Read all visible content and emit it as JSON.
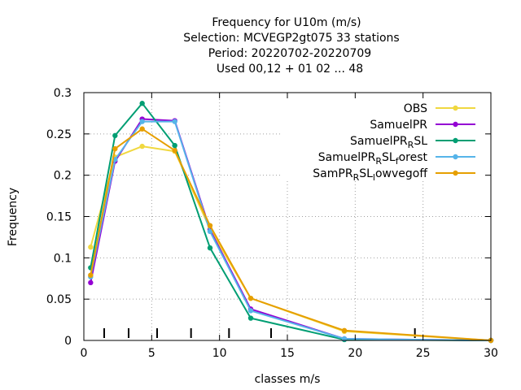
{
  "chart_data": {
    "type": "line",
    "title_lines": [
      "Frequency  for U10m (m/s)",
      "Selection: MCVEGP2gt075      33 stations",
      "Period: 20220702-20220709",
      "Used  00,12  + 01 02 ... 48"
    ],
    "xlabel": "classes m/s",
    "ylabel": "Frequency",
    "xlim": [
      0,
      30
    ],
    "ylim": [
      0,
      0.3
    ],
    "x_ticks": [
      "0",
      "5",
      "10",
      "15",
      "20",
      "25",
      "30"
    ],
    "y_ticks": [
      "0",
      "0.05",
      "0.1",
      "0.15",
      "0.2",
      "0.25",
      "0.3"
    ],
    "grid": "dotted",
    "legend_position": "top-right",
    "class_boundaries": [
      1.5,
      3.3,
      5.4,
      7.9,
      10.7,
      13.8,
      24.4
    ],
    "series": [
      {
        "name": "OBS",
        "color": "#f0d840",
        "x": [
          0.5,
          2.3,
          4.3,
          6.7,
          9.3,
          12.3,
          19.2,
          30
        ],
        "y": [
          0.113,
          0.222,
          0.235,
          0.229,
          0.135,
          0.051,
          0.011,
          0.0
        ]
      },
      {
        "name": "SamuelPR",
        "color": "#9400d3",
        "x": [
          0.5,
          2.3,
          4.3,
          6.7,
          9.3,
          12.3,
          19.2,
          30
        ],
        "y": [
          0.07,
          0.217,
          0.268,
          0.266,
          0.134,
          0.038,
          0.002,
          0.0
        ]
      },
      {
        "name": "SamuelPR_R SL",
        "color": "#009e73",
        "x": [
          0.5,
          2.3,
          4.3,
          6.7,
          9.3,
          12.3,
          19.2,
          30
        ],
        "y": [
          0.088,
          0.248,
          0.287,
          0.236,
          0.112,
          0.027,
          0.001,
          0.0
        ]
      },
      {
        "name": "SamuelPR_R SL_f orest",
        "color": "#56b4e9",
        "x": [
          0.5,
          2.3,
          4.3,
          6.7,
          9.3,
          12.3,
          19.2,
          30
        ],
        "y": [
          0.077,
          0.219,
          0.265,
          0.265,
          0.132,
          0.036,
          0.002,
          0.0
        ]
      },
      {
        "name": "SamPR_R SL_l owvegoff",
        "color": "#e69f00",
        "x": [
          0.5,
          2.3,
          4.3,
          6.7,
          9.3,
          12.3,
          19.2,
          30
        ],
        "y": [
          0.079,
          0.232,
          0.256,
          0.23,
          0.139,
          0.051,
          0.012,
          0.0
        ]
      }
    ],
    "legend": [
      {
        "main": "OBS",
        "parts": []
      },
      {
        "main": "SamuelPR",
        "parts": []
      },
      {
        "main": "SamuelPR",
        "parts": [
          {
            "t": "R",
            "sub": true
          },
          {
            "t": "SL",
            "sub": false
          }
        ]
      },
      {
        "main": "SamuelPR",
        "parts": [
          {
            "t": "R",
            "sub": true
          },
          {
            "t": "SL",
            "sub": false
          },
          {
            "t": "f",
            "sub": true
          },
          {
            "t": "orest",
            "sub": false
          }
        ]
      },
      {
        "main": "SamPR",
        "parts": [
          {
            "t": "R",
            "sub": true
          },
          {
            "t": "SL",
            "sub": false
          },
          {
            "t": "l",
            "sub": true
          },
          {
            "t": "owvegoff",
            "sub": false
          }
        ]
      }
    ]
  }
}
